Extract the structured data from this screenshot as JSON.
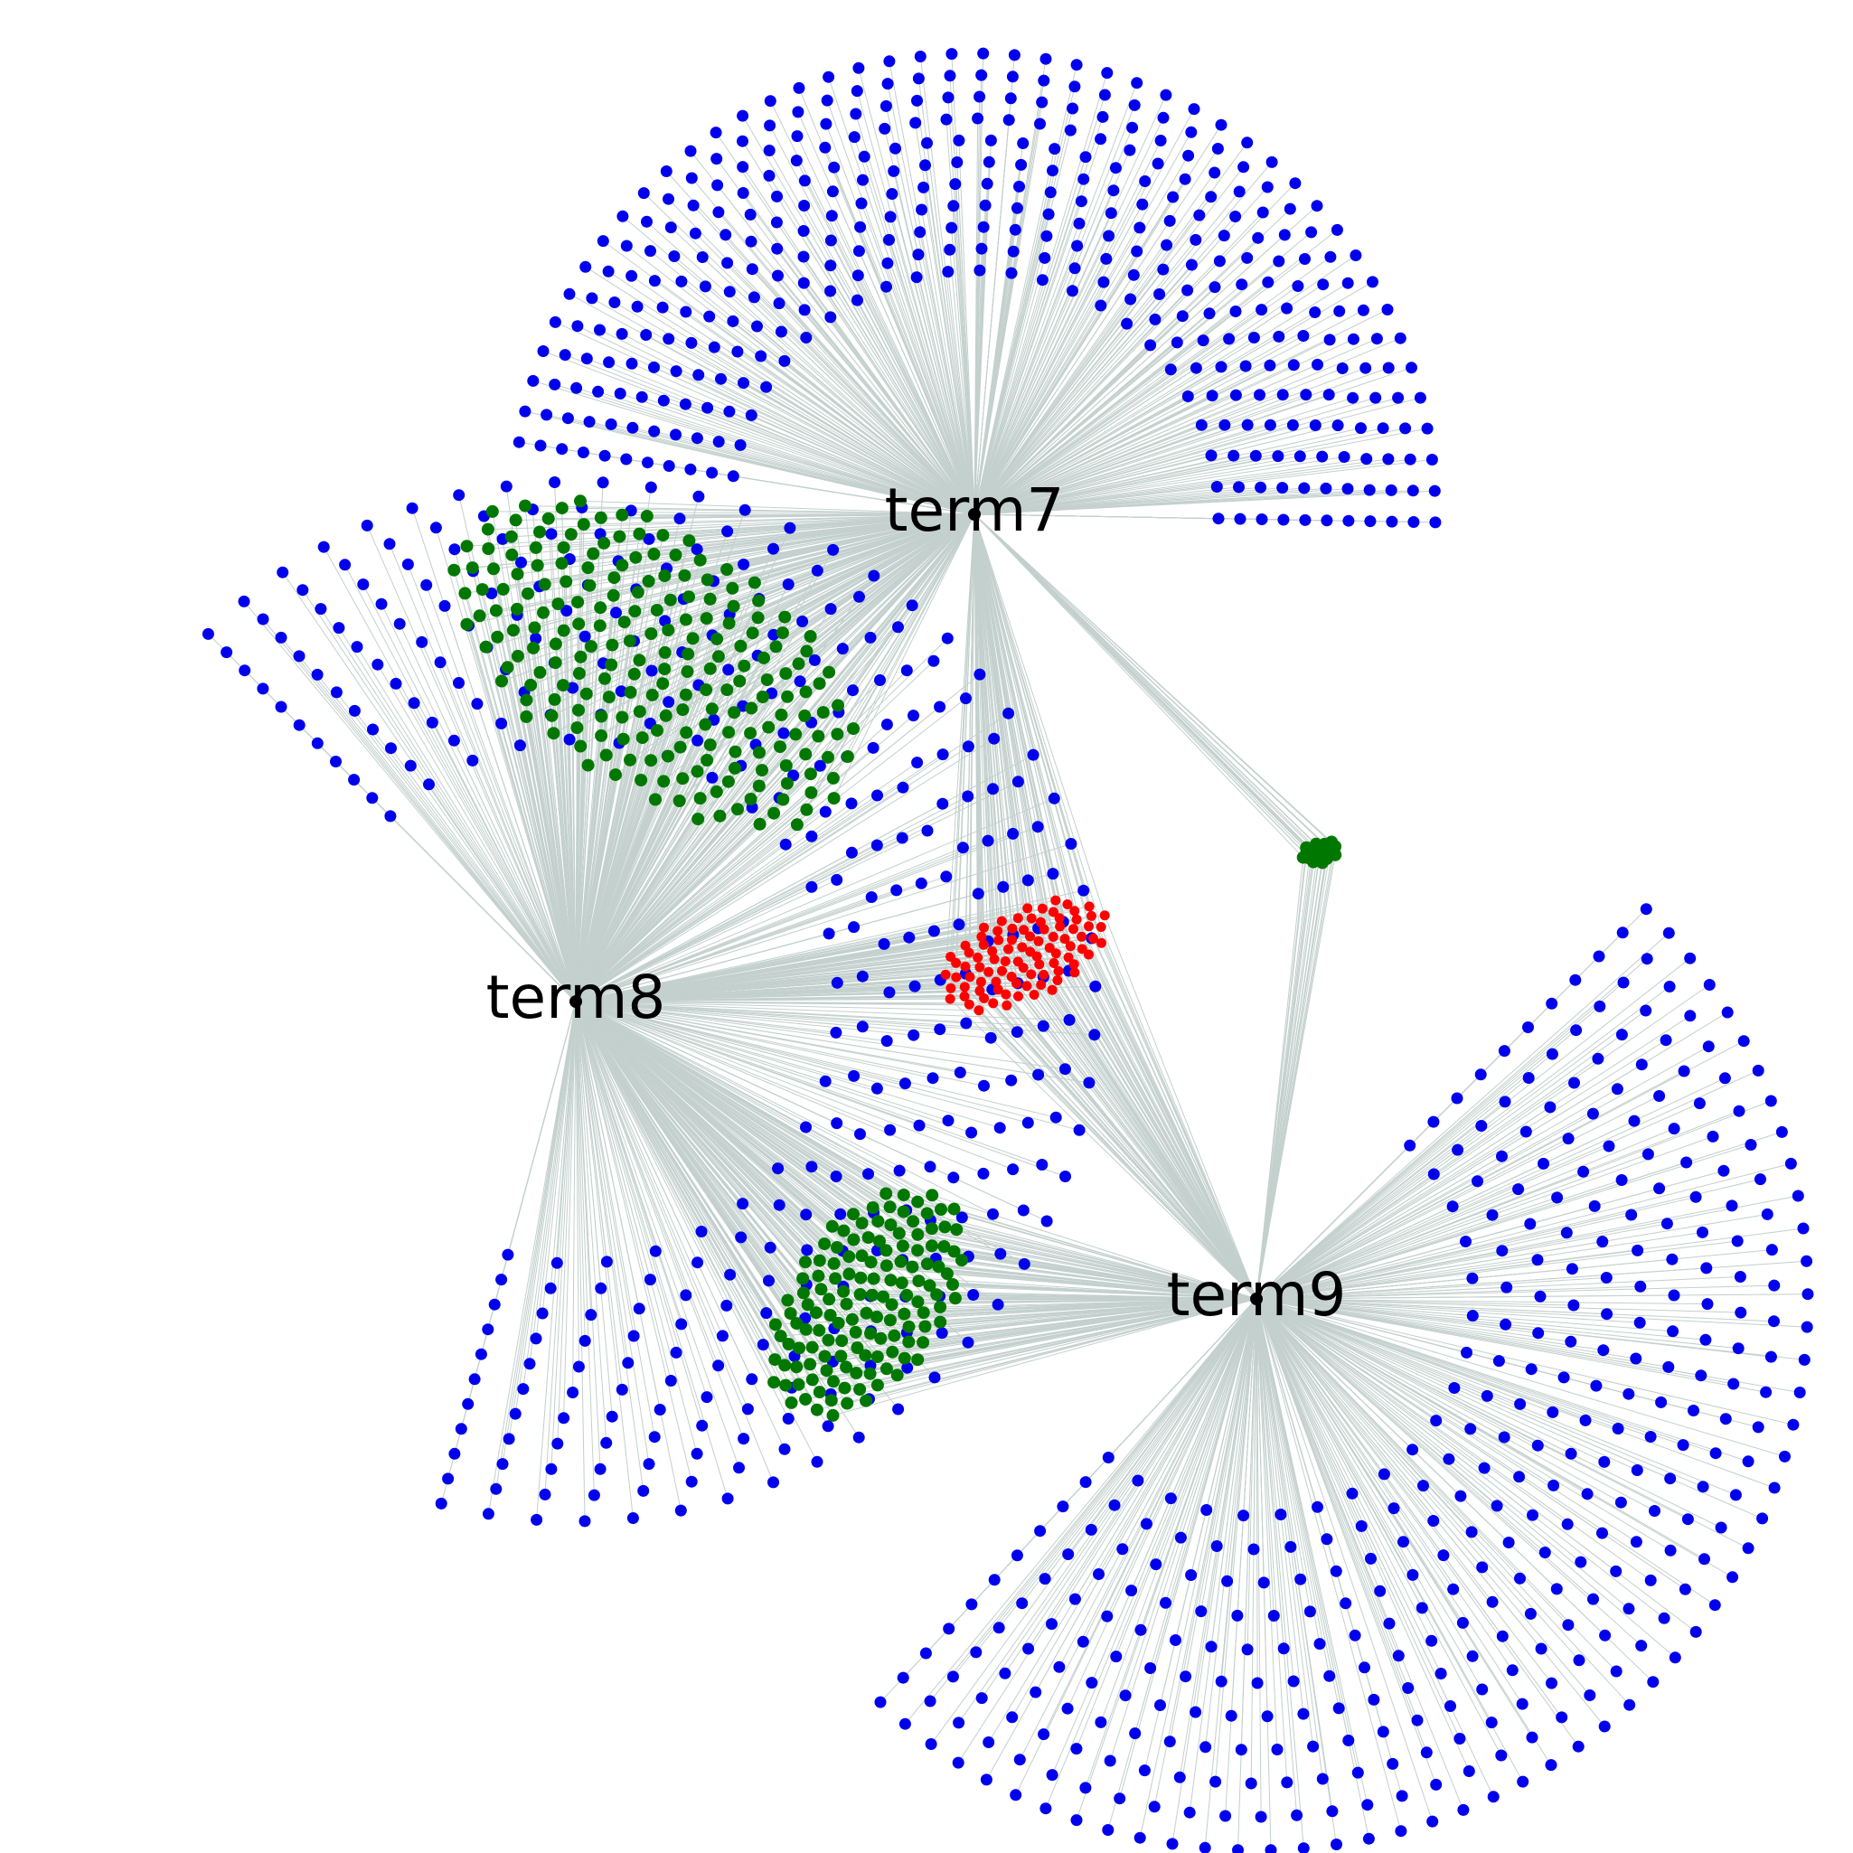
{
  "colors": {
    "background": "#ffffff",
    "edge": "#c3d0cd",
    "hub": "#000000",
    "exclusive": "#0000ee",
    "shared_pair": "#007800",
    "shared_all": "#ff0000"
  },
  "hubs": [
    {
      "id": "term7",
      "label": "term7"
    },
    {
      "id": "term8",
      "label": "term8"
    },
    {
      "id": "term9",
      "label": "term9"
    }
  ],
  "groups": [
    {
      "name": "term7-only",
      "color_key": "exclusive",
      "connected_to": [
        "term7"
      ],
      "node_count": 378
    },
    {
      "name": "term8-only",
      "color_key": "exclusive",
      "connected_to": [
        "term8"
      ],
      "node_count": 378
    },
    {
      "name": "term9-only",
      "color_key": "exclusive",
      "connected_to": [
        "term9"
      ],
      "node_count": 378
    },
    {
      "name": "term7-term8",
      "color_key": "shared_pair",
      "connected_to": [
        "term7",
        "term8"
      ],
      "node_count": 210
    },
    {
      "name": "term8-term9",
      "color_key": "shared_pair",
      "connected_to": [
        "term8",
        "term9"
      ],
      "node_count": 136
    },
    {
      "name": "term7-term9",
      "color_key": "shared_pair",
      "connected_to": [
        "term7",
        "term9"
      ],
      "node_count": 21
    },
    {
      "name": "term7-term8-term9",
      "color_key": "shared_all",
      "connected_to": [
        "term7",
        "term8",
        "term9"
      ],
      "node_count": 91
    }
  ]
}
